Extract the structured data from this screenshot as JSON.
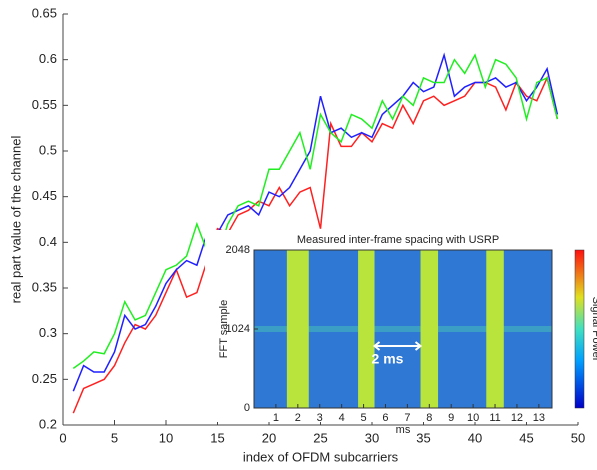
{
  "chart_data": [
    {
      "type": "line",
      "xlabel": "index of OFDM subcarriers",
      "ylabel": "real part value of the channel",
      "x": [
        1,
        2,
        3,
        4,
        5,
        6,
        7,
        8,
        9,
        10,
        11,
        12,
        13,
        14,
        15,
        16,
        17,
        18,
        19,
        20,
        21,
        22,
        23,
        24,
        25,
        26,
        27,
        28,
        29,
        30,
        31,
        32,
        33,
        34,
        35,
        36,
        37,
        38,
        39,
        40,
        41,
        42,
        43,
        44,
        45,
        46,
        47,
        48
      ],
      "xlim": [
        0,
        50
      ],
      "xticks": [
        0,
        5,
        10,
        15,
        20,
        25,
        30,
        35,
        40,
        45,
        50
      ],
      "ylim": [
        0.2,
        0.65
      ],
      "yticks": [
        0.2,
        0.25,
        0.3,
        0.35,
        0.4,
        0.45,
        0.5,
        0.55,
        0.6,
        0.65
      ],
      "series": [
        {
          "color": "#ff2020",
          "values": [
            0.213,
            0.24,
            0.245,
            0.25,
            0.265,
            0.29,
            0.31,
            0.305,
            0.32,
            0.345,
            0.37,
            0.34,
            0.345,
            0.38,
            0.415,
            0.41,
            0.43,
            0.435,
            0.445,
            0.44,
            0.46,
            0.44,
            0.455,
            0.46,
            0.415,
            0.53,
            0.505,
            0.505,
            0.52,
            0.51,
            0.53,
            0.525,
            0.55,
            0.53,
            0.555,
            0.56,
            0.55,
            0.555,
            0.56,
            0.575,
            0.575,
            0.57,
            0.545,
            0.575,
            0.56,
            0.555,
            0.58,
            0.535
          ]
        },
        {
          "color": "#2020ff",
          "values": [
            0.237,
            0.265,
            0.258,
            0.258,
            0.28,
            0.32,
            0.305,
            0.31,
            0.33,
            0.355,
            0.37,
            0.38,
            0.375,
            0.41,
            0.41,
            0.43,
            0.435,
            0.44,
            0.43,
            0.455,
            0.45,
            0.46,
            0.48,
            0.5,
            0.56,
            0.52,
            0.525,
            0.515,
            0.52,
            0.515,
            0.54,
            0.55,
            0.56,
            0.575,
            0.565,
            0.57,
            0.605,
            0.56,
            0.57,
            0.575,
            0.575,
            0.58,
            0.57,
            0.575,
            0.555,
            0.57,
            0.59,
            0.54
          ]
        },
        {
          "color": "#20ee20",
          "values": [
            0.262,
            0.27,
            0.28,
            0.278,
            0.3,
            0.335,
            0.315,
            0.32,
            0.345,
            0.37,
            0.375,
            0.385,
            0.42,
            0.39,
            0.385,
            0.42,
            0.44,
            0.445,
            0.44,
            0.48,
            0.48,
            0.5,
            0.52,
            0.48,
            0.54,
            0.52,
            0.51,
            0.54,
            0.535,
            0.525,
            0.555,
            0.535,
            0.56,
            0.55,
            0.58,
            0.575,
            0.575,
            0.6,
            0.585,
            0.605,
            0.57,
            0.6,
            0.595,
            0.58,
            0.535,
            0.575,
            0.58,
            0.535
          ]
        }
      ]
    },
    {
      "type": "spectrogram",
      "title": "Measured inter-frame spacing with USRP",
      "xlabel": "ms",
      "ylabel": "FFT sample",
      "xlim": [
        0,
        13.6
      ],
      "xticks": [
        1,
        2,
        3,
        4,
        5,
        6,
        7,
        8,
        9,
        10,
        11,
        12,
        13
      ],
      "ylim": [
        0,
        2048
      ],
      "yticks": [
        0,
        1024,
        2048
      ],
      "bursts": [
        [
          1.5,
          2.5
        ],
        [
          4.75,
          5.5
        ],
        [
          7.6,
          8.4
        ],
        [
          10.6,
          11.4
        ]
      ],
      "burst_color": "#b8e43c",
      "annotation": "2 ms",
      "annotation_span": [
        5.5,
        7.6
      ],
      "colorbar_label": "Signal Power"
    }
  ]
}
